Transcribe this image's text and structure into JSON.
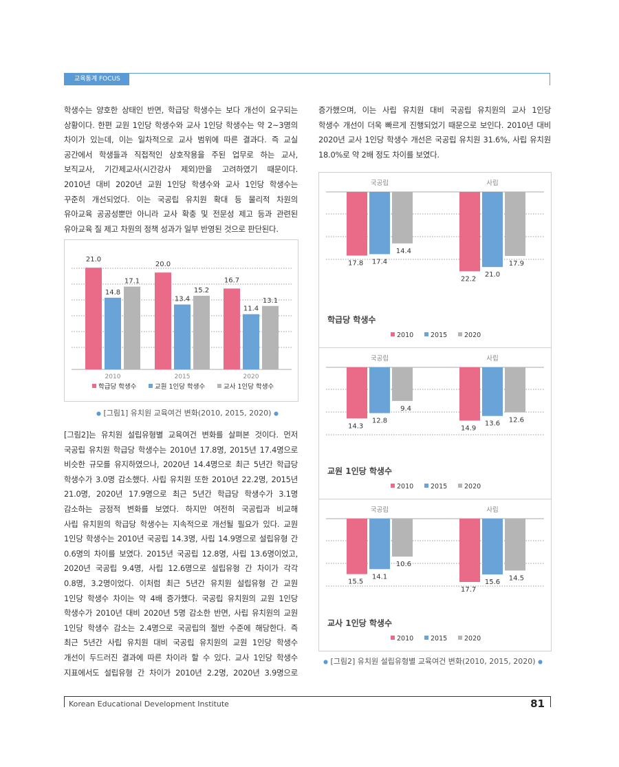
{
  "header": {
    "tag": "교육통계 FOCUS"
  },
  "left_paragraph_1": [
    "학생수는 양호한 상태인 반면, 학급당 학생수는 보다 개선이 요구되는",
    "상황이다. 한편 교원 1인당 학생수와 교사 1인당 학생수는 약 2~3명의",
    "차이가 있는데, 이는 일차적으로 교사 범위에 따른 결과다. 즉 교실",
    "공간에서 학생들과 직접적인 상호작용을 주된 업무로 하는 교사,",
    "보직교사, 기간제교사(시간강사 제외)만을 고려하였기 때문이다.",
    "2010년 대비 2020년 교원 1인당 학생수와 교사 1인당 학생수는",
    "꾸준히 개선되었다. 이는 국공립 유치원 확대 등 물리적 차원의",
    "유아교육 공공성뿐만 아니라 교사 확충 및 전문성 제고 등과 관련된",
    "유아교육 질 제고 차원의 정책 성과가 일부 반영된 것으로 판단된다."
  ],
  "left_paragraph_2": [
    "[그림2]는 유치원 설립유형별 교육여건 변화를 살펴본 것이다. 먼저",
    "국공립 유치원 학급당 학생수는 2010년 17.8명, 2015년 17.4명으로",
    "비슷한 규모를 유지하였으나, 2020년 14.4명으로 최근 5년간 학급당",
    "학생수가 3.0명 감소했다. 사립 유치원 또한 2010년 22.2명, 2015년",
    "21.0명, 2020년 17.9명으로 최근 5년간 학급당 학생수가 3.1명",
    "감소하는 긍정적 변화를 보였다. 하지만 여전히 국공립과 비교해",
    "사립 유치원의 학급당 학생수는 지속적으로 개선될 필요가 있다. 교원",
    "1인당 학생수는 2010년 국공립 14.3명, 사립 14.9명으로 설립유형 간",
    "0.6명의 차이를 보였다. 2015년 국공립 12.8명, 사립 13.6명이었고,",
    "2020년 국공립 9.4명, 사립 12.6명으로 설립유형 간 차이가 각각",
    "0.8명, 3.2명이었다. 이처럼 최근 5년간 유치원 설립유형 간 교원",
    "1인당 학생수 차이는 약 4배 증가했다. 국공립 유치원의 교원 1인당",
    "학생수가 2010년 대비 2020년 5명 감소한 반면, 사립 유치원의 교원",
    "1인당 학생수 감소는 2.4명으로 국공립의 절반 수준에 해당한다. 즉",
    "최근 5년간 사립 유치원 대비 국공립 유치원의 교원 1인당 학생수",
    "개선이 두드러진 결과에 따른 차이라 할 수 있다. 교사 1인당 학생수",
    "지표에서도 설립유형 간 차이가 2010년 2.2명, 2020년 3.9명으로"
  ],
  "right_paragraph_1": [
    "증가했으며, 이는 사립 유치원 대비 국공립 유치원의 교사 1인당",
    "학생수 개선이 더욱 빠르게 진행되었기 때문으로 보인다. 2010년 대비",
    "2020년 교사 1인당 학생수 개선은 국공립 유치원 31.6%, 사립 유치원",
    "18.0%로 약 2배 정도 차이를 보였다."
  ],
  "figure1": {
    "caption": "[그림1] 유치원 교육여건 변화(2010, 2015, 2020)"
  },
  "figure2": {
    "caption": "[그림2] 유치원 설립유형별 교육여건 변화(2010, 2015, 2020)"
  },
  "colors": {
    "series_2010": "#e96b88",
    "series_2015": "#6aa3d8",
    "series_2020": "#b5b5b5",
    "accent": "#5b9bd5"
  },
  "chart_data": [
    {
      "type": "bar",
      "categories": [
        "2010",
        "2015",
        "2020"
      ],
      "series": [
        {
          "name": "학급당 학생수",
          "values": [
            21.0,
            20.0,
            16.7
          ]
        },
        {
          "name": "교원 1인당 학생수",
          "values": [
            14.8,
            13.4,
            11.4
          ]
        },
        {
          "name": "교사 1인당 학생수",
          "values": [
            17.1,
            15.2,
            13.1
          ]
        }
      ],
      "ylim": [
        0,
        23
      ],
      "legend": "bottom",
      "grid": true
    },
    {
      "type": "bar",
      "orientation": "inverted",
      "title": "학급당 학생수",
      "categories": [
        "국공립",
        "사립"
      ],
      "series": [
        {
          "name": "2010",
          "values": [
            17.8,
            22.2
          ]
        },
        {
          "name": "2015",
          "values": [
            17.4,
            21.0
          ]
        },
        {
          "name": "2020",
          "values": [
            14.4,
            17.9
          ]
        }
      ],
      "legend": "bottom",
      "grid": true
    },
    {
      "type": "bar",
      "orientation": "inverted",
      "title": "교원 1인당 학생수",
      "categories": [
        "국공립",
        "사립"
      ],
      "series": [
        {
          "name": "2010",
          "values": [
            14.3,
            14.9
          ]
        },
        {
          "name": "2015",
          "values": [
            12.8,
            13.6
          ]
        },
        {
          "name": "2020",
          "values": [
            9.4,
            12.6
          ]
        }
      ],
      "legend": "bottom",
      "grid": true
    },
    {
      "type": "bar",
      "orientation": "inverted",
      "title": "교사 1인당 학생수",
      "categories": [
        "국공립",
        "사립"
      ],
      "series": [
        {
          "name": "2010",
          "values": [
            15.5,
            17.7
          ]
        },
        {
          "name": "2015",
          "values": [
            14.1,
            15.6
          ]
        },
        {
          "name": "2020",
          "values": [
            10.6,
            14.5
          ]
        }
      ],
      "legend": "bottom",
      "grid": true
    }
  ],
  "footer": {
    "institute": "Korean Educational Development Institute",
    "page": "81"
  }
}
